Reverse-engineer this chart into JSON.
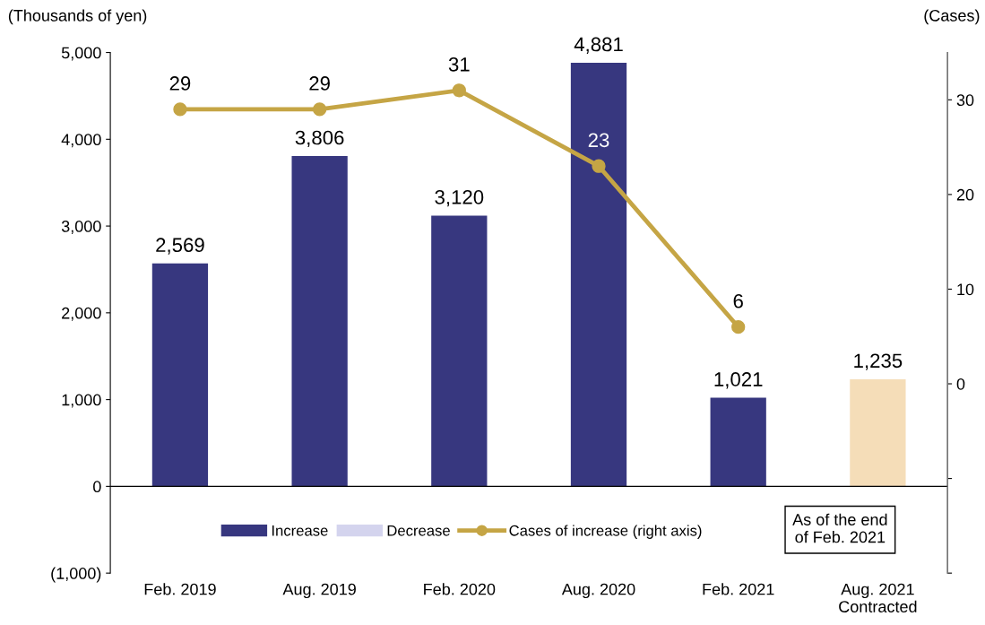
{
  "chart_data": {
    "type": "bar",
    "categories": [
      "Feb. 2019",
      "Aug. 2019",
      "Feb. 2020",
      "Aug. 2020",
      "Feb. 2021",
      "Aug. 2021\nContracted"
    ],
    "series": [
      {
        "name": "Increase",
        "color": "#37377f",
        "colors": [
          "#37377f",
          "#37377f",
          "#37377f",
          "#37377f",
          "#37377f",
          "#f5ddb8"
        ],
        "values": [
          2569,
          3806,
          3120,
          4881,
          1021,
          1235
        ],
        "value_labels": [
          "2,569",
          "3,806",
          "3,120",
          "4,881",
          "1,021",
          "1,235"
        ]
      },
      {
        "name": "Decrease",
        "color": "#d4d4ee",
        "values": [
          null,
          null,
          null,
          null,
          null,
          null
        ]
      },
      {
        "name": "Cases of increase (right axis)",
        "type": "line",
        "axis": "y2",
        "color": "#c5a545",
        "marker": "circle",
        "values": [
          29,
          29,
          31,
          23,
          6,
          null
        ],
        "value_labels": [
          "29",
          "29",
          "31",
          "23",
          "6",
          null
        ]
      }
    ],
    "ylabel": "(Thousands of yen)",
    "y2label": "(Cases)",
    "ylim": [
      -1000,
      5000
    ],
    "yticks": [
      {
        "value": -1000,
        "label": "(1,000)"
      },
      {
        "value": 0,
        "label": "0"
      },
      {
        "value": 1000,
        "label": "1,000"
      },
      {
        "value": 2000,
        "label": "2,000"
      },
      {
        "value": 3000,
        "label": "3,000"
      },
      {
        "value": 4000,
        "label": "4,000"
      },
      {
        "value": 5000,
        "label": "5,000"
      }
    ],
    "y2lim": [
      -20,
      35
    ],
    "y2ticks": [
      {
        "value": -20,
        "label": null
      },
      {
        "value": -10,
        "label": null
      },
      0,
      10,
      20,
      30
    ],
    "ref_lines": [
      {
        "axis": "y",
        "value": 0,
        "label": null,
        "color": "#000000"
      }
    ],
    "annotations": [
      "As of the end\nof Feb. 2021"
    ],
    "legend": "bottom",
    "grid": false
  }
}
